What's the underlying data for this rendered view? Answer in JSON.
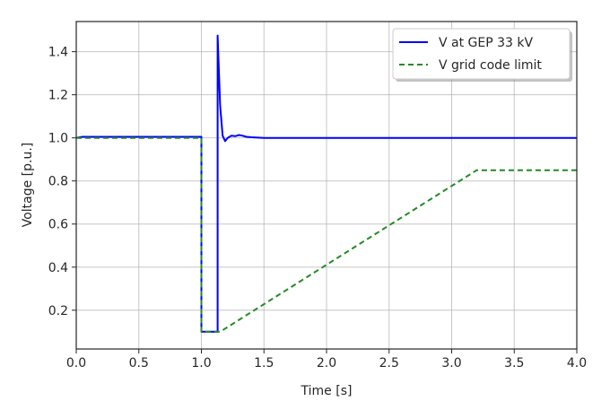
{
  "chart_data": {
    "type": "line",
    "title": "",
    "xlabel": "Time [s]",
    "ylabel": "Voltage [p.u.]",
    "xlim": [
      0.0,
      4.0
    ],
    "ylim": [
      0.02,
      1.54
    ],
    "grid": true,
    "legend_position": "upper right",
    "xticks": [
      "0.0",
      "0.5",
      "1.0",
      "1.5",
      "2.0",
      "2.5",
      "3.0",
      "3.5",
      "4.0"
    ],
    "yticks": [
      "0.2",
      "0.4",
      "0.6",
      "0.8",
      "1.0",
      "1.2",
      "1.4"
    ],
    "series": [
      {
        "name": "V at GEP 33 kV",
        "color": "#0000ff",
        "style": "solid",
        "x": [
          0.0,
          0.05,
          1.0,
          1.0,
          1.13,
          1.13,
          1.15,
          1.17,
          1.19,
          1.21,
          1.24,
          1.27,
          1.3,
          1.33,
          1.36,
          1.4,
          1.5,
          2.0,
          4.0
        ],
        "y": [
          1.0,
          1.005,
          1.005,
          0.1,
          0.1,
          1.475,
          1.15,
          1.01,
          0.985,
          1.0,
          1.01,
          1.008,
          1.013,
          1.01,
          1.005,
          1.003,
          1.0,
          1.0,
          1.0
        ]
      },
      {
        "name": "V grid code limit",
        "color": "#228b22",
        "style": "dashed",
        "x": [
          0.0,
          1.0,
          1.0,
          1.15,
          3.2,
          4.0
        ],
        "y": [
          1.0,
          1.0,
          0.1,
          0.1,
          0.85,
          0.85
        ]
      }
    ]
  },
  "legend": {
    "items": [
      {
        "label": "V at GEP 33 kV"
      },
      {
        "label": "V grid code limit"
      }
    ]
  }
}
